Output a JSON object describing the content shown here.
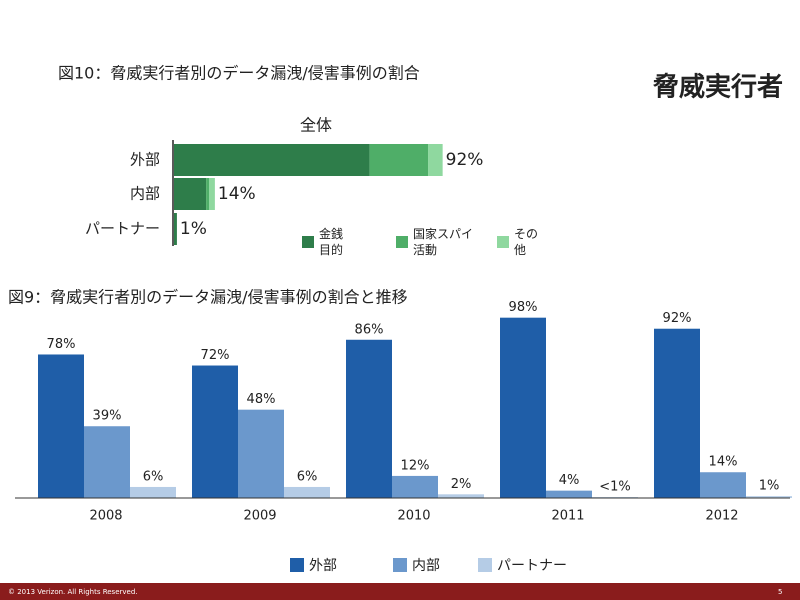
{
  "slide": {
    "title": "脅威実行者",
    "footer": "© 2013 Verizon. All Rights Reserved.",
    "page": "5"
  },
  "chart_data": [
    {
      "type": "hbar-stacked",
      "title": "図10：脅威実行者別のデータ漏洩/侵害事例の割合",
      "subtitle": "全体",
      "categories": [
        "外部",
        "内部",
        "パートナー"
      ],
      "series": [
        {
          "name": "金銭目的",
          "color": "#2e7d4a",
          "values": [
            67,
            11,
            1
          ]
        },
        {
          "name": "国家スパイ活動",
          "color": "#4fae68",
          "values": [
            20,
            1,
            0
          ]
        },
        {
          "name": "その他",
          "color": "#8fd89f",
          "values": [
            5,
            2,
            0
          ]
        }
      ],
      "totals": [
        92,
        14,
        1
      ],
      "total_labels": [
        "92%",
        "14%",
        "1%"
      ]
    },
    {
      "type": "bar",
      "title": "図9：脅威実行者別のデータ漏洩/侵害事例の割合と推移",
      "categories": [
        "2008",
        "2009",
        "2010",
        "2011",
        "2012"
      ],
      "ylim": [
        0,
        100
      ],
      "series": [
        {
          "name": "外部",
          "color": "#1f5ea8",
          "values": [
            78,
            72,
            86,
            98,
            92
          ],
          "value_labels": [
            "78%",
            "72%",
            "86%",
            "98%",
            "92%"
          ]
        },
        {
          "name": "内部",
          "color": "#6b98cc",
          "values": [
            39,
            48,
            12,
            4,
            14
          ],
          "value_labels": [
            "39%",
            "48%",
            "12%",
            "4%",
            "14%"
          ]
        },
        {
          "name": "パートナー",
          "color": "#b5cce6",
          "values": [
            6,
            6,
            2,
            0.5,
            1
          ],
          "value_labels": [
            "6%",
            "6%",
            "2%",
            "<1%",
            "1%"
          ]
        }
      ]
    }
  ]
}
